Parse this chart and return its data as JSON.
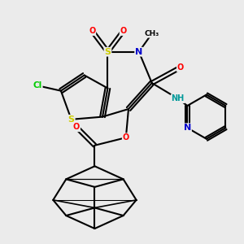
{
  "background_color": "#ebebeb",
  "atom_colors": {
    "S": "#cccc00",
    "O": "#ff0000",
    "N": "#0000cc",
    "Cl": "#00cc00",
    "C": "#000000",
    "H": "#009999"
  },
  "bond_color": "#000000",
  "bond_width": 1.5,
  "figsize": [
    3.0,
    3.0
  ],
  "dpi": 100
}
